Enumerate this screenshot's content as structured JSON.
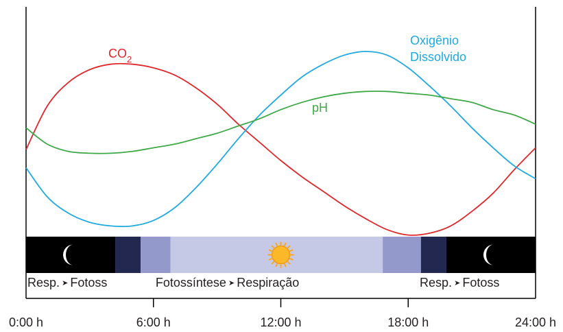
{
  "chart_data": {
    "type": "line",
    "x_ticks": [
      "0:00 h",
      "6:00 h",
      "12:00 h",
      "18:00 h",
      "24:00 h"
    ],
    "xlim": [
      0,
      24
    ],
    "ylim": [
      0,
      100
    ],
    "grid": false,
    "series": [
      {
        "name": "CO2",
        "label_main": "CO",
        "label_sub": "2",
        "color": "#e0262a",
        "x": [
          0,
          1,
          2,
          3,
          4,
          5,
          6,
          7,
          8,
          9,
          10,
          11,
          12,
          13,
          14,
          15,
          16,
          17,
          18,
          19,
          20,
          21,
          22,
          23,
          24
        ],
        "y": [
          46,
          70,
          83,
          90,
          93,
          93,
          91,
          87,
          80,
          71,
          60,
          50,
          40,
          31,
          23,
          15,
          8,
          2,
          -1,
          0,
          4,
          12,
          22,
          35,
          47
        ]
      },
      {
        "name": "Oxigênio Dissolvido",
        "label_lines": [
          "Oxigênio",
          "Dissolvido"
        ],
        "color": "#1fa9e0",
        "x": [
          0,
          1,
          2,
          3,
          4,
          5,
          6,
          7,
          8,
          9,
          10,
          11,
          12,
          13,
          14,
          15,
          16,
          17,
          18,
          19,
          20,
          21,
          22,
          23,
          24
        ],
        "y": [
          36,
          20,
          11,
          6,
          4,
          4,
          7,
          14,
          25,
          38,
          52,
          65,
          76,
          86,
          93,
          98,
          100,
          98,
          91,
          81,
          70,
          58,
          47,
          37,
          30
        ]
      },
      {
        "name": "pH",
        "label_lines": [
          "pH"
        ],
        "color": "#3ea847",
        "x": [
          0,
          1,
          2,
          3,
          4,
          5,
          6,
          7,
          8,
          9,
          10,
          11,
          12,
          13,
          14,
          15,
          16,
          17,
          18,
          19,
          20,
          21,
          22,
          23,
          24
        ],
        "y": [
          58,
          49,
          45,
          44,
          44,
          45,
          47,
          49,
          52,
          55,
          59,
          63,
          68,
          72,
          75,
          77,
          78,
          78,
          77,
          76,
          74,
          72,
          68,
          65,
          60
        ]
      }
    ],
    "light_bands": [
      {
        "from": 0,
        "to": 4.2,
        "color": "#000000"
      },
      {
        "from": 4.2,
        "to": 5.4,
        "color": "#232850"
      },
      {
        "from": 5.4,
        "to": 6.8,
        "color": "#9499cb"
      },
      {
        "from": 6.8,
        "to": 16.8,
        "color": "#c5c9e5"
      },
      {
        "from": 16.8,
        "to": 18.6,
        "color": "#9499cb"
      },
      {
        "from": 18.6,
        "to": 19.8,
        "color": "#232850"
      },
      {
        "from": 19.8,
        "to": 24,
        "color": "#000000"
      }
    ],
    "icons": [
      "moon-icon",
      "sun-icon",
      "moon-icon"
    ],
    "phases": [
      {
        "left": "Resp.",
        "right": "Fotoss"
      },
      {
        "left": "Fotossíntese",
        "right": "Respiração"
      },
      {
        "left": "Resp.",
        "right": "Fotoss"
      }
    ]
  }
}
